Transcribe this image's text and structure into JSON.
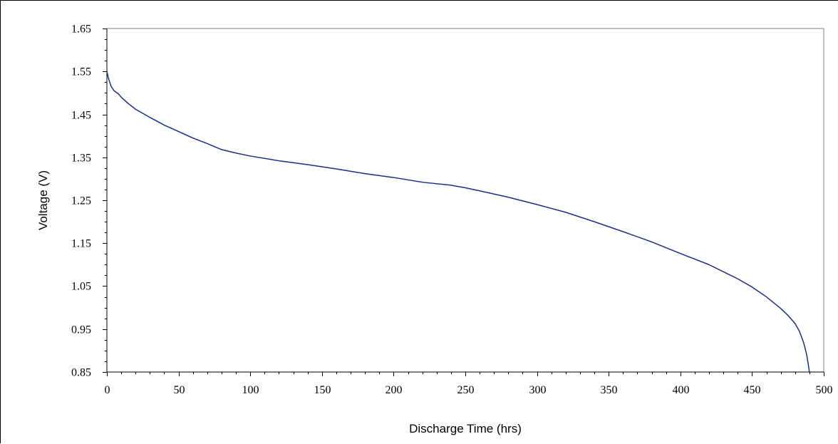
{
  "chart_data": {
    "type": "line",
    "title": "",
    "xlabel": "Discharge Time (hrs)",
    "ylabel": "Voltage (V)",
    "xlim": [
      0,
      500
    ],
    "ylim": [
      0.85,
      1.65
    ],
    "x_ticks": [
      0,
      50,
      100,
      150,
      200,
      250,
      300,
      350,
      400,
      450,
      500
    ],
    "y_ticks": [
      0.85,
      0.95,
      1.05,
      1.15,
      1.25,
      1.35,
      1.45,
      1.55,
      1.65
    ],
    "x_tick_labels": [
      "0",
      "50",
      "100",
      "150",
      "200",
      "250",
      "300",
      "350",
      "400",
      "450",
      "500"
    ],
    "y_tick_labels": [
      "0.85",
      "0.95",
      "1.05",
      "1.15",
      "1.25",
      "1.35",
      "1.45",
      "1.55",
      "1.65"
    ],
    "grid": false,
    "legend": "none",
    "series": [
      {
        "color": "#1c2c8c",
        "x": [
          0,
          1,
          2,
          3,
          5,
          8,
          10,
          15,
          20,
          30,
          40,
          50,
          60,
          70,
          80,
          90,
          100,
          120,
          140,
          160,
          180,
          200,
          220,
          240,
          250,
          260,
          280,
          300,
          320,
          340,
          360,
          380,
          400,
          420,
          440,
          450,
          460,
          470,
          475,
          480,
          483,
          486,
          488,
          489,
          490
        ],
        "y": [
          1.55,
          1.535,
          1.525,
          1.515,
          1.505,
          1.498,
          1.49,
          1.475,
          1.462,
          1.443,
          1.425,
          1.41,
          1.395,
          1.382,
          1.368,
          1.36,
          1.353,
          1.342,
          1.333,
          1.323,
          1.312,
          1.303,
          1.292,
          1.285,
          1.279,
          1.272,
          1.257,
          1.24,
          1.222,
          1.2,
          1.177,
          1.153,
          1.126,
          1.1,
          1.067,
          1.048,
          1.025,
          0.998,
          0.982,
          0.963,
          0.945,
          0.918,
          0.892,
          0.872,
          0.85
        ]
      }
    ]
  }
}
